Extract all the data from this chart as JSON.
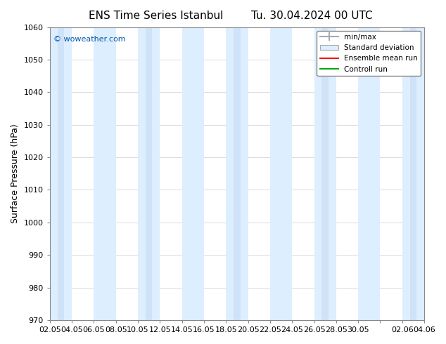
{
  "title_left": "ENS Time Series Istanbul",
  "title_right": "Tu. 30.04.2024 00 UTC",
  "ylabel": "Surface Pressure (hPa)",
  "ylim": [
    970,
    1060
  ],
  "yticks": [
    970,
    980,
    990,
    1000,
    1010,
    1020,
    1030,
    1040,
    1050,
    1060
  ],
  "xtick_labels": [
    "02.05",
    "04.05",
    "06.05",
    "08.05",
    "10.05",
    "12.05",
    "14.05",
    "16.05",
    "18.05",
    "20.05",
    "22.05",
    "24.05",
    "26.05",
    "28.05",
    "30.05",
    "",
    "02.06",
    "04.06"
  ],
  "background_color": "#ffffff",
  "plot_bg_color": "#ffffff",
  "band_color": "#ddeeff",
  "band_color2": "#cce0f5",
  "copyright_text": "© woweather.com",
  "copyright_color": "#0055aa",
  "legend_entries": [
    "min/max",
    "Standard deviation",
    "Ensemble mean run",
    "Controll run"
  ],
  "legend_colors": [
    "#aaaaaa",
    "#cccccc",
    "#ff0000",
    "#00aa00"
  ],
  "num_bands": 18,
  "title_fontsize": 11,
  "axis_fontsize": 9,
  "tick_fontsize": 8
}
